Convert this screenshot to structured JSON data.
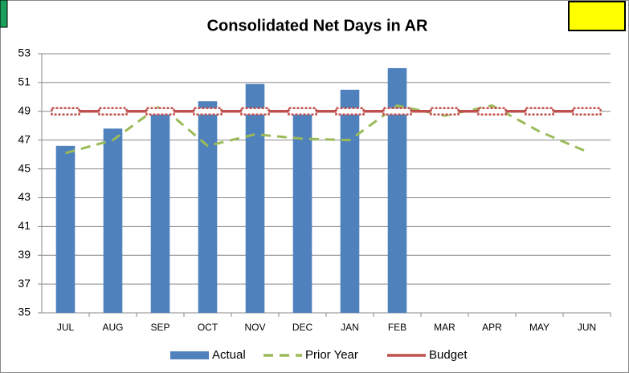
{
  "chart_data": {
    "type": "bar",
    "title": "Consolidated Net Days in AR",
    "categories": [
      "JUL",
      "AUG",
      "SEP",
      "OCT",
      "NOV",
      "DEC",
      "JAN",
      "FEB",
      "MAR",
      "APR",
      "MAY",
      "JUN"
    ],
    "series": [
      {
        "name": "Actual",
        "type": "bar",
        "color": "#4f81bd",
        "values": [
          46.6,
          47.8,
          49.1,
          49.7,
          50.9,
          49.0,
          50.5,
          52.0,
          null,
          null,
          null,
          null
        ]
      },
      {
        "name": "Prior Year",
        "type": "line",
        "dashed": true,
        "color": "#9bbb59",
        "values": [
          46.1,
          47.0,
          49.4,
          46.6,
          47.4,
          47.1,
          47.0,
          49.4,
          48.7,
          49.4,
          47.6,
          46.2
        ]
      },
      {
        "name": "Budget",
        "type": "line",
        "markers": true,
        "color": "#c0504d",
        "values": [
          49,
          49,
          49,
          49,
          49,
          49,
          49,
          49,
          49,
          49,
          49,
          49
        ]
      }
    ],
    "ylim": [
      35,
      53
    ],
    "yticks": [
      35,
      37,
      39,
      41,
      43,
      45,
      47,
      49,
      51,
      53
    ],
    "grid": true,
    "legend": "bottom"
  }
}
